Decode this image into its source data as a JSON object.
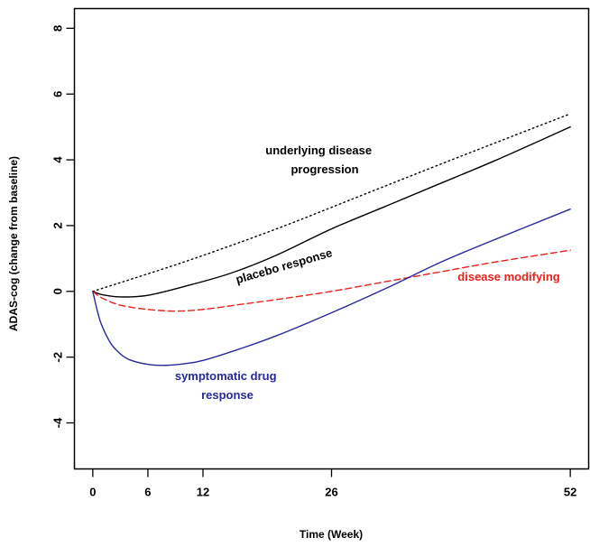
{
  "chart_data": {
    "type": "line",
    "title": "",
    "xlabel": "Time (Week)",
    "ylabel": "ADAS-cog (change from baseline)",
    "xlim": [
      -2,
      54
    ],
    "ylim": [
      -5.4,
      8.6
    ],
    "x_ticks": [
      0,
      6,
      12,
      26,
      52
    ],
    "y_ticks": [
      -4,
      -2,
      0,
      2,
      4,
      6,
      8
    ],
    "grid": false,
    "legend": "none",
    "series": [
      {
        "name": "underlying disease progression",
        "style": "dotted",
        "color": "#000000",
        "x": [
          0,
          10,
          20,
          30,
          40,
          52
        ],
        "y": [
          0,
          0.9,
          1.9,
          3.0,
          4.1,
          5.4
        ]
      },
      {
        "name": "placebo response",
        "style": "solid",
        "color": "#000000",
        "x": [
          0,
          1,
          3,
          6,
          10,
          15,
          20,
          26,
          32,
          38,
          44,
          52
        ],
        "y": [
          0,
          -0.1,
          -0.17,
          -0.12,
          0.15,
          0.55,
          1.1,
          1.9,
          2.6,
          3.3,
          4.0,
          5.0
        ]
      },
      {
        "name": "disease modifying",
        "style": "dashed",
        "color": "#e8221b",
        "x": [
          0,
          1,
          3,
          6,
          9,
          12,
          16,
          20,
          26,
          32,
          38,
          44,
          52
        ],
        "y": [
          0,
          -0.2,
          -0.42,
          -0.55,
          -0.6,
          -0.55,
          -0.4,
          -0.25,
          0.0,
          0.3,
          0.6,
          0.9,
          1.25
        ]
      },
      {
        "name": "symptomatic drug response",
        "style": "solid",
        "color": "#28289a",
        "x": [
          0,
          0.5,
          1,
          2,
          3,
          4,
          6,
          8,
          10,
          12,
          16,
          20,
          26,
          32,
          38,
          44,
          52
        ],
        "y": [
          0,
          -0.6,
          -1.05,
          -1.6,
          -1.9,
          -2.08,
          -2.22,
          -2.25,
          -2.2,
          -2.1,
          -1.75,
          -1.35,
          -0.65,
          0.1,
          0.9,
          1.6,
          2.5
        ]
      }
    ],
    "annotations": [
      {
        "lines": [
          "underlying disease",
          "progression"
        ],
        "color": "#000000"
      },
      {
        "lines": [
          "placebo response"
        ],
        "color": "#000000"
      },
      {
        "lines": [
          "disease modifying"
        ],
        "color": "#e8221b"
      },
      {
        "lines": [
          "symptomatic drug",
          "response"
        ],
        "color": "#28289a"
      }
    ]
  }
}
